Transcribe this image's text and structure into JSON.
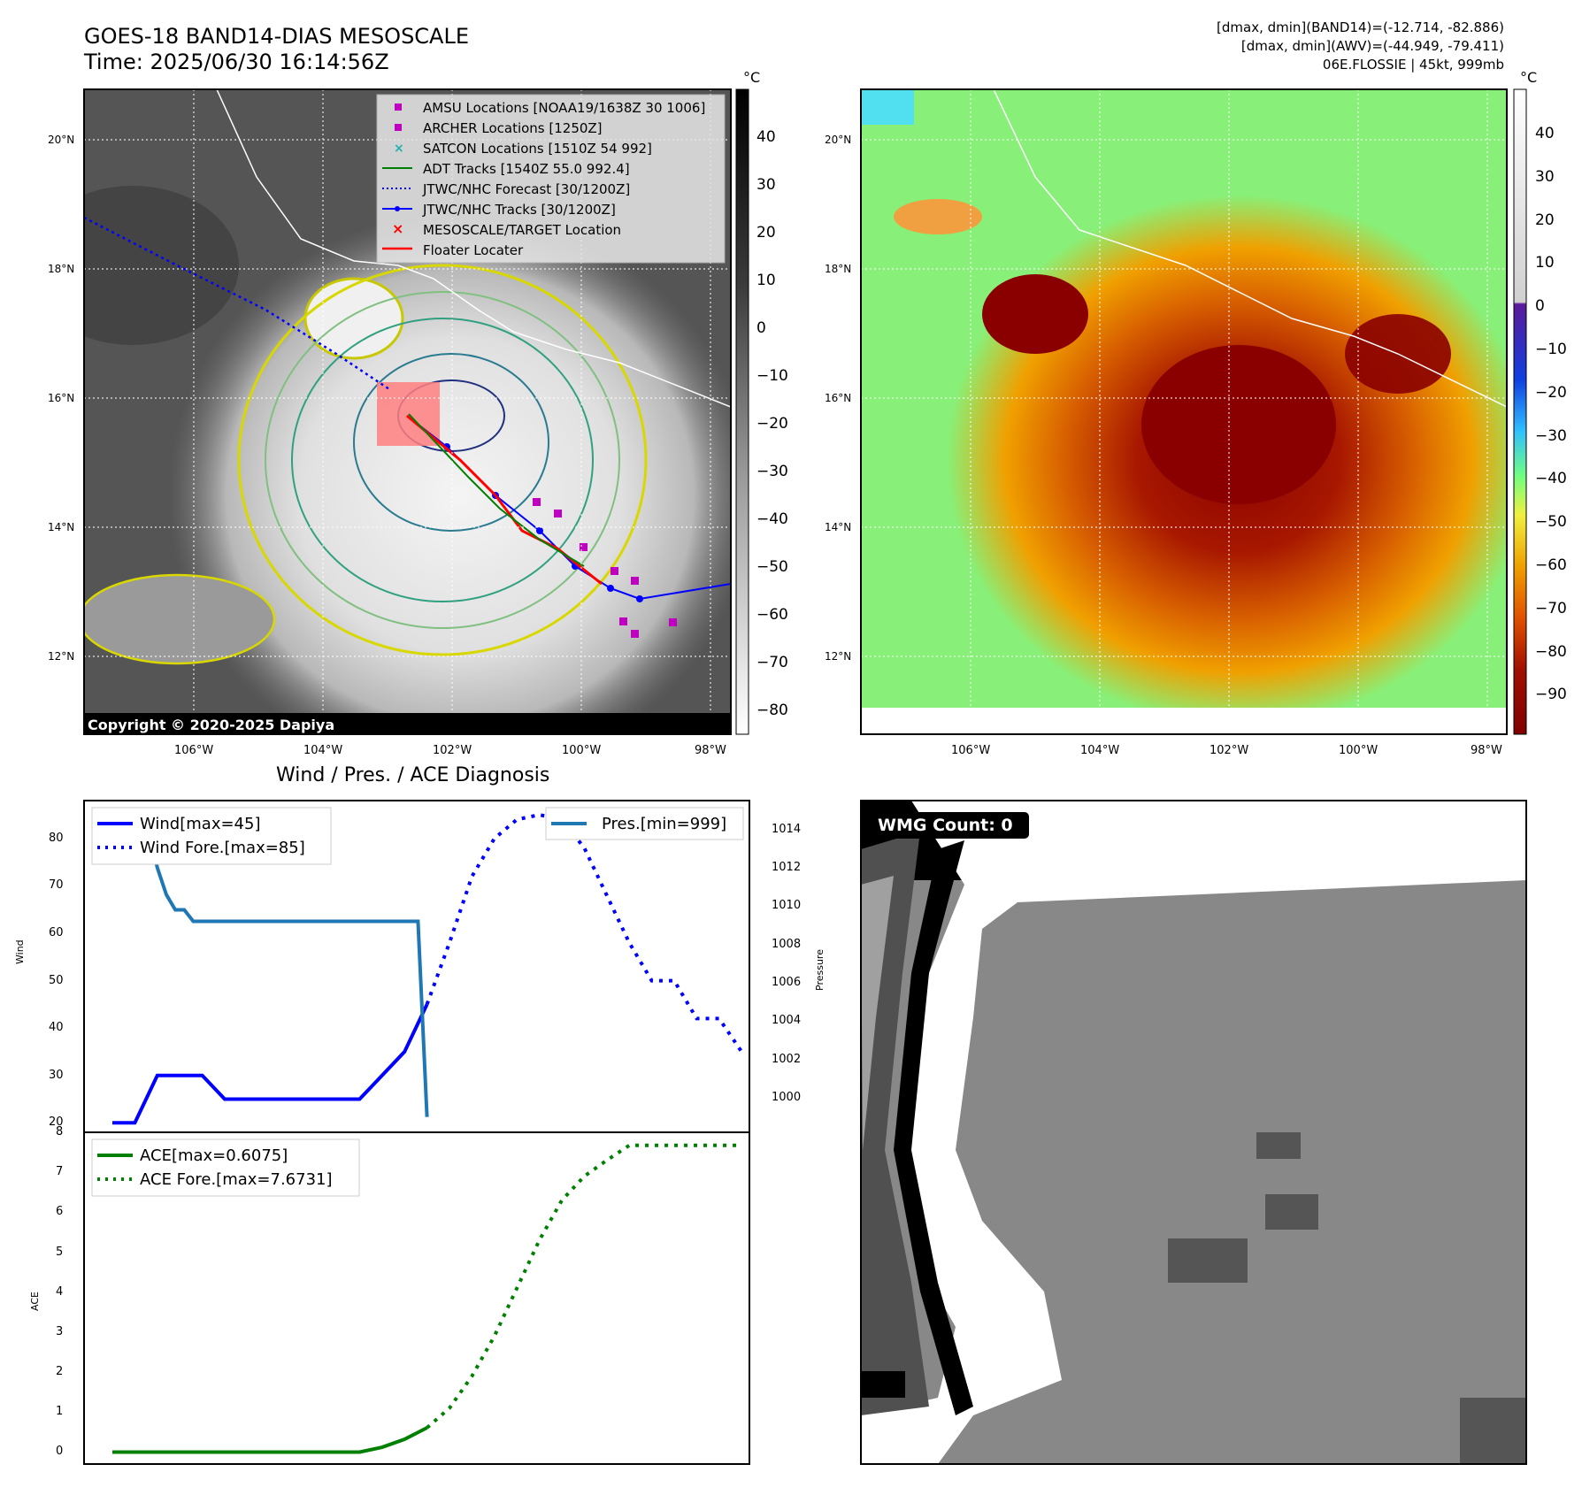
{
  "header": {
    "title": "GOES-18 BAND14-DIAS MESOSCALE",
    "time": "Time: 2025/06/30 16:14:56Z",
    "info_line1": "[dmax, dmin](BAND14)=(-12.714, -82.886)",
    "info_line2": "[dmax, dmin](AWV)=(-44.949, -79.411)",
    "info_line3": "06E.FLOSSIE | 45kt, 999mb"
  },
  "map": {
    "lat_labels": [
      "20°N",
      "18°N",
      "16°N",
      "14°N",
      "12°N"
    ],
    "lon_labels": [
      "106°W",
      "104°W",
      "102°W",
      "100°W",
      "98°W"
    ],
    "copyright": "Copyright © 2020-2025 Dapiya",
    "legend": [
      {
        "label": "AMSU Locations [NOAA19/1638Z 30 1006]",
        "symbol": "square",
        "color": "#c000c0"
      },
      {
        "label": "ARCHER Locations [1250Z]",
        "symbol": "square",
        "color": "#c000c0"
      },
      {
        "label": "SATCON Locations [1510Z 54 992]",
        "symbol": "x",
        "color": "#20b0b0"
      },
      {
        "label": "ADT Tracks [1540Z 55.0 992.4]",
        "symbol": "line",
        "color": "#008000"
      },
      {
        "label": "JTWC/NHC Forecast [30/1200Z]",
        "symbol": "dotted",
        "color": "#0000ff"
      },
      {
        "label": "JTWC/NHC Tracks [30/1200Z]",
        "symbol": "line-dot",
        "color": "#0000ff"
      },
      {
        "label": "MESOSCALE/TARGET Location",
        "symbol": "x",
        "color": "#ff0000"
      },
      {
        "label": "Floater Locater",
        "symbol": "line",
        "color": "#ff0000"
      }
    ],
    "cbar_left_unit": "°C",
    "cbar_left_ticks": [
      "40",
      "30",
      "20",
      "10",
      "0",
      "−10",
      "−20",
      "−30",
      "−40",
      "−50",
      "−60",
      "−70",
      "−80"
    ],
    "cbar_right_unit": "°C",
    "cbar_right_ticks": [
      "40",
      "30",
      "20",
      "10",
      "0",
      "−10",
      "−20",
      "−30",
      "−40",
      "−50",
      "−60",
      "−70",
      "−80",
      "−90"
    ]
  },
  "wmg": {
    "label": "WMG Count: 0"
  },
  "chart_data": [
    {
      "type": "line",
      "title": "Wind / Pres. / ACE Diagnosis",
      "ylabel": "Wind",
      "ylabel_right": "Pressure",
      "ylim": [
        18,
        88
      ],
      "ylim_right": [
        998.2,
        1015.5
      ],
      "yticks": [
        20,
        30,
        40,
        50,
        60,
        70,
        80
      ],
      "yticks_right": [
        1000,
        1002,
        1004,
        1006,
        1008,
        1010,
        1012,
        1014
      ],
      "legend_left": [
        "Wind[max=45]",
        "Wind Fore.[max=85]"
      ],
      "legend_right": [
        "Pres.[min=999]"
      ],
      "series": [
        {
          "name": "Wind[max=45]",
          "axis": "left",
          "color": "#0000ff",
          "style": "solid",
          "x": [
            0,
            1,
            2,
            3,
            4,
            5,
            6,
            7,
            8,
            9,
            10,
            11,
            12,
            13,
            14
          ],
          "values": [
            20,
            20,
            30,
            30,
            30,
            25,
            25,
            25,
            25,
            25,
            25,
            25,
            30,
            35,
            45
          ]
        },
        {
          "name": "Wind Fore.[max=85]",
          "axis": "left",
          "color": "#0000ff",
          "style": "dotted",
          "x": [
            14,
            15,
            16,
            17,
            18,
            19,
            20,
            21,
            22,
            23,
            24,
            25,
            26,
            27,
            28
          ],
          "values": [
            45,
            58,
            72,
            80,
            84,
            85,
            84,
            78,
            68,
            58,
            50,
            50,
            42,
            42,
            35
          ]
        },
        {
          "name": "Pres.[min=999]",
          "axis": "right",
          "color": "#1f77b4",
          "style": "solid",
          "x": [
            0,
            0.8,
            1.6,
            2,
            2.4,
            2.8,
            3.2,
            3.6,
            4,
            4.4,
            4.8,
            5.2,
            5.6,
            6,
            6.4,
            6.8,
            7.2,
            7.6,
            8,
            8.4,
            8.8,
            9.2,
            9.6,
            10,
            10.4,
            10.8,
            11.2,
            11.6,
            12,
            12.4,
            12.8,
            13.2,
            13.6,
            14
          ],
          "values": [
            1014,
            1014,
            1014,
            1012,
            1010.6,
            1009.8,
            1009.8,
            1009.2,
            1009.2,
            1009.2,
            1009.2,
            1009.2,
            1009.2,
            1009.2,
            1009.2,
            1009.2,
            1009.2,
            1009.2,
            1009.2,
            1009.2,
            1009.2,
            1009.2,
            1009.2,
            1009.2,
            1009.2,
            1009.2,
            1009.2,
            1009.2,
            1009.2,
            1009.2,
            1009.2,
            1009.2,
            1009.2,
            999
          ]
        }
      ]
    },
    {
      "type": "line",
      "ylabel": "ACE",
      "ylim": [
        -0.3,
        8
      ],
      "yticks": [
        0,
        1,
        2,
        3,
        4,
        5,
        6,
        7,
        8
      ],
      "legend": [
        "ACE[max=0.6075]",
        "ACE Fore.[max=7.6731]"
      ],
      "series": [
        {
          "name": "ACE[max=0.6075]",
          "color": "#008000",
          "style": "solid",
          "x": [
            0,
            1,
            2,
            3,
            4,
            5,
            6,
            7,
            8,
            9,
            10,
            11,
            12,
            13,
            14
          ],
          "values": [
            0,
            0,
            0,
            0,
            0,
            0,
            0,
            0,
            0,
            0,
            0,
            0,
            0.12,
            0.32,
            0.6075
          ]
        },
        {
          "name": "ACE Fore.[max=7.6731]",
          "color": "#008000",
          "style": "dotted",
          "x": [
            14,
            15,
            16,
            17,
            18,
            19,
            20,
            21,
            22,
            23,
            24,
            25,
            26,
            27,
            28
          ],
          "values": [
            0.6075,
            1.1,
            1.9,
            2.9,
            4.1,
            5.3,
            6.3,
            6.9,
            7.3,
            7.6731,
            7.6731,
            7.6731,
            7.6731,
            7.6731,
            7.6731
          ]
        }
      ]
    }
  ]
}
